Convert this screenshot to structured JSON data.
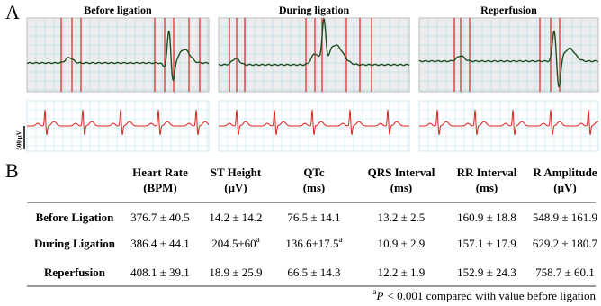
{
  "panel_a": {
    "label": "A",
    "titles": [
      "Before ligation",
      "During ligation",
      "Reperfusion"
    ],
    "scale_label": "500 μV"
  },
  "panel_b": {
    "label": "B",
    "header": [
      {
        "line1": "Heart Rate",
        "line2": "(BPM)"
      },
      {
        "line1": "ST Height",
        "line2": "(μV)"
      },
      {
        "line1": "QTc",
        "line2": "(ms)"
      },
      {
        "line1": "QRS Interval",
        "line2": "(ms)"
      },
      {
        "line1": "RR Interval",
        "line2": "(ms)"
      },
      {
        "line1": "R Amplitude",
        "line2": "(μV)"
      }
    ],
    "rows": [
      {
        "label": "Before Ligation",
        "cells": [
          {
            "text": "376.7 ± 40.5"
          },
          {
            "text": "14.2 ± 14.2"
          },
          {
            "text": "76.5 ± 14.1"
          },
          {
            "text": "13.2 ± 2.5"
          },
          {
            "text": "160.9 ± 18.8"
          },
          {
            "text": "548.9 ± 161.9"
          }
        ]
      },
      {
        "label": "During Ligation",
        "cells": [
          {
            "text": "386.4 ± 44.1"
          },
          {
            "text": "204.5±60",
            "sup": "a"
          },
          {
            "text": "136.6±17.5",
            "sup": "a"
          },
          {
            "text": "10.9 ± 2.9"
          },
          {
            "text": "157.1 ± 17.9"
          },
          {
            "text": "629.2 ± 180.7"
          }
        ]
      },
      {
        "label": "Reperfusion",
        "cells": [
          {
            "text": "408.1 ± 39.1"
          },
          {
            "text": "18.9 ± 25.9"
          },
          {
            "text": "66.5 ± 14.3"
          },
          {
            "text": "12.2 ± 1.9"
          },
          {
            "text": "152.9 ± 24.3"
          },
          {
            "text": "758.7 ± 60.1"
          }
        ]
      }
    ],
    "footnote": {
      "mark": "a",
      "italic": "P",
      "text": "< 0.001 compared with value before ligation"
    }
  }
}
